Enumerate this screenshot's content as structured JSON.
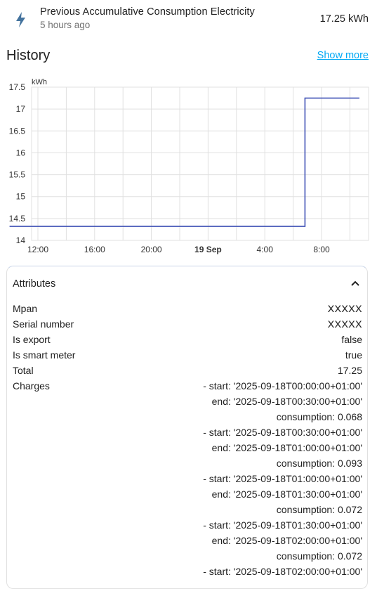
{
  "entity": {
    "icon": "lightning-bolt-icon",
    "name": "Previous Accumulative Consumption Electricity",
    "last_changed": "5 hours ago",
    "state": "17.25 kWh",
    "icon_color": "#44739e"
  },
  "history": {
    "title": "History",
    "show_more": "Show more",
    "link_color": "#03a9f4"
  },
  "chart_data": {
    "type": "line",
    "ylabel": "kWh",
    "ylim": [
      14,
      17.5
    ],
    "yticks": [
      "17.5",
      "17",
      "16.5",
      "16",
      "15.5",
      "15",
      "14.5",
      "14"
    ],
    "xticks": [
      "12:00",
      "16:00",
      "20:00",
      "19 Sep",
      "4:00",
      "8:00"
    ],
    "series": [
      {
        "color": "#3f51b5",
        "points": [
          {
            "x": "2025-09-18 10:00",
            "y": 14.32
          },
          {
            "x": "2025-09-19 06:50",
            "y": 14.32
          },
          {
            "x": "2025-09-19 06:50",
            "y": 17.25
          },
          {
            "x": "2025-09-19 10:40",
            "y": 17.25
          }
        ]
      }
    ],
    "grid": true
  },
  "attributes": {
    "title": "Attributes",
    "chevron_icon": "chevron-up-icon",
    "mpan_label": "Mpan",
    "mpan_value": "XXXXX",
    "serial_label": "Serial number",
    "serial_value": "XXXXX",
    "export_label": "Is export",
    "export_value": "false",
    "smart_label": "Is smart meter",
    "smart_value": "true",
    "total_label": "Total",
    "total_value": "17.25",
    "charges_label": "Charges",
    "charges": [
      {
        "start": "- start: '2025-09-18T00:00:00+01:00'",
        "end": "end: '2025-09-18T00:30:00+01:00'",
        "consumption": "consumption: 0.068"
      },
      {
        "start": "- start: '2025-09-18T00:30:00+01:00'",
        "end": "end: '2025-09-18T01:00:00+01:00'",
        "consumption": "consumption: 0.093"
      },
      {
        "start": "- start: '2025-09-18T01:00:00+01:00'",
        "end": "end: '2025-09-18T01:30:00+01:00'",
        "consumption": "consumption: 0.072"
      },
      {
        "start": "- start: '2025-09-18T01:30:00+01:00'",
        "end": "end: '2025-09-18T02:00:00+01:00'",
        "consumption": "consumption: 0.072"
      },
      {
        "start": "- start: '2025-09-18T02:00:00+01:00'"
      }
    ]
  }
}
